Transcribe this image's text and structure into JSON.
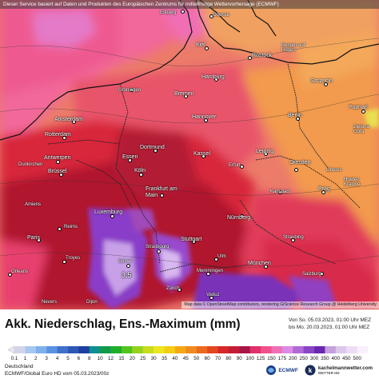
{
  "banner": "Dieser Service basiert auf Daten und Produkten des Europäischen Zentrums für mittelfristige Wettervorhersage (ECMWF)",
  "attribution": "Map data © OpenStreetMap contributors, rendering GIScience Research Group @ Heidelberg University",
  "title": "Akk. Niederschlag, Ens.-Maximum (mm)",
  "validity": {
    "from": "Von So. 05.03.2023, 01:00 Uhr MEZ",
    "to": "bis Mo. 20.03.2023, 01:00 Uhr MEZ"
  },
  "footer": {
    "region": "Deutschland",
    "model": "ECMWF/Global Euro HD vom  05.03.2023/00z"
  },
  "logos": {
    "ecmwf": "ECMWF",
    "kachelmann": "kachelmannwetter.com",
    "kachelmann_sub": "WETTER HD"
  },
  "max_value": "3.5",
  "legend": {
    "labels": [
      "0.1",
      "1",
      "2",
      "3",
      "4",
      "5",
      "6",
      "8",
      "10",
      "12",
      "15",
      "20",
      "25",
      "30",
      "35",
      "40",
      "45",
      "50",
      "60",
      "70",
      "80",
      "90",
      "100",
      "125",
      "150",
      "175",
      "200",
      "250",
      "300",
      "350",
      "400",
      "450",
      "500"
    ],
    "colors": [
      "#d4d4e8",
      "#a6c8f0",
      "#7fb0ec",
      "#5a92e2",
      "#3e70cc",
      "#2e58b8",
      "#1e3fa0",
      "#0f8f8f",
      "#129a4a",
      "#1fae2a",
      "#52c41e",
      "#94d21e",
      "#c8dc1e",
      "#ece61e",
      "#f5cc14",
      "#f5a814",
      "#f08a1e",
      "#ec6a1e",
      "#e4461e",
      "#d82828",
      "#c41c36",
      "#a81646",
      "#e1306c",
      "#f0508c",
      "#f06eb4",
      "#dc8ae6",
      "#b06ad6",
      "#8a44c4",
      "#6a28b0",
      "#c4a0dc",
      "#dcc8ec",
      "#eedcf6",
      "#f8f0fc"
    ]
  },
  "colors": {
    "sea": "#f2679a",
    "land_base": "#ec7b6a",
    "east_orange": "#f29a4e",
    "deep_red": "#a6112c"
  },
  "cities": [
    {
      "name": "Esbjerg"
    },
    {
      "name": "Odense"
    },
    {
      "name": "Kiel"
    },
    {
      "name": "Rostock"
    },
    {
      "name": "Bergen auf Rügen"
    },
    {
      "name": "Hamburg"
    },
    {
      "name": "Szczecin"
    },
    {
      "name": "Groningen"
    },
    {
      "name": "Bremen"
    },
    {
      "name": "Amsterdam"
    },
    {
      "name": "Hannover"
    },
    {
      "name": "Berlin"
    },
    {
      "name": "Poznań"
    },
    {
      "name": "Rotterdam"
    },
    {
      "name": "Dortmund"
    },
    {
      "name": "Zielona Góra"
    },
    {
      "name": "Antwerpen"
    },
    {
      "name": "Essen"
    },
    {
      "name": "Kassel"
    },
    {
      "name": "Leipzig"
    },
    {
      "name": "Dunkirchen"
    },
    {
      "name": "Brüssel"
    },
    {
      "name": "Köln"
    },
    {
      "name": "Erfurt"
    },
    {
      "name": "Dresden"
    },
    {
      "name": "Liberec"
    },
    {
      "name": "Amiens"
    },
    {
      "name": "Frankfurt am Main"
    },
    {
      "name": "Karlsbad"
    },
    {
      "name": "Prag"
    },
    {
      "name": "Hradec Králové"
    },
    {
      "name": "Luxemburg"
    },
    {
      "name": "Reims"
    },
    {
      "name": "Nürnberg"
    },
    {
      "name": "Paris"
    },
    {
      "name": "Strasbourg"
    },
    {
      "name": "Stuttgart"
    },
    {
      "name": "Straubing"
    },
    {
      "name": "Troyes"
    },
    {
      "name": "Epinal"
    },
    {
      "name": "Ulm"
    },
    {
      "name": "Orleans"
    },
    {
      "name": "München"
    },
    {
      "name": "Memmingen"
    },
    {
      "name": "Salzburg"
    },
    {
      "name": "Zürich"
    },
    {
      "name": "Vaduz"
    },
    {
      "name": "Nevers"
    },
    {
      "name": "Dijon"
    }
  ]
}
